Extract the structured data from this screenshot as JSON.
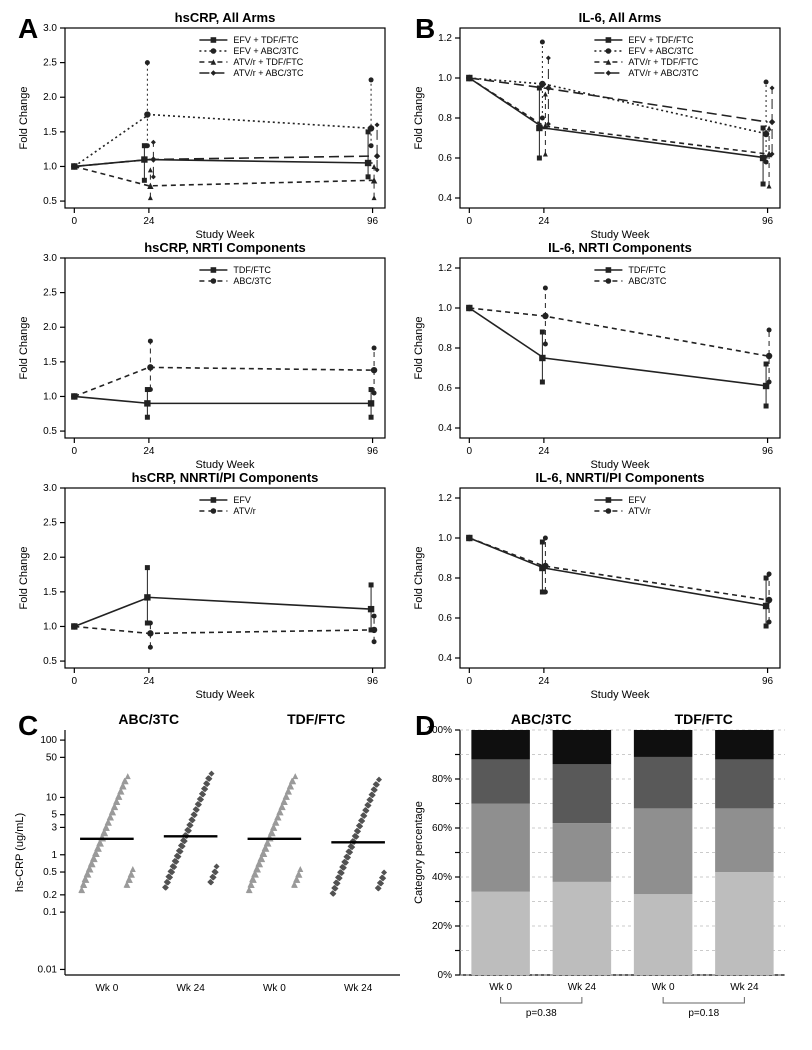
{
  "panel_letters": {
    "A": "A",
    "B": "B",
    "C": "C",
    "D": "D"
  },
  "lineplots": {
    "common": {
      "x": {
        "ticks": [
          0,
          24,
          96
        ],
        "lim": [
          -3,
          100
        ],
        "label": "Study Week"
      },
      "axis_color": "#000",
      "line_colors": {
        "solid": "#1a1a1a",
        "dashed": "#1a1a1a",
        "dotted": "#1a1a1a",
        "longdash": "#1a1a1a"
      }
    },
    "A1": {
      "title": "hsCRP, All Arms",
      "ylabel": "Fold Change",
      "ylim": [
        0.4,
        3.0
      ],
      "yticks": [
        0.5,
        1.0,
        1.5,
        2.0,
        2.5,
        3.0
      ],
      "legend": [
        "EFV + TDF/FTC",
        "EFV + ABC/3TC",
        "ATV/r + TDF/FTC",
        "ATV/r + ABC/3TC"
      ],
      "series": [
        {
          "dash": "",
          "marker": "square",
          "pts": [
            [
              0,
              1.0
            ],
            [
              24,
              1.1
            ],
            [
              96,
              1.05
            ]
          ],
          "err": [
            [
              24,
              0.8,
              1.3
            ],
            [
              96,
              0.85,
              1.5
            ]
          ]
        },
        {
          "dash": "2,2",
          "marker": "circle",
          "pts": [
            [
              0,
              1.0
            ],
            [
              24,
              1.75
            ],
            [
              96,
              1.55
            ]
          ],
          "err": [
            [
              24,
              1.3,
              2.5
            ],
            [
              96,
              1.3,
              2.25
            ]
          ]
        },
        {
          "dash": "4,3",
          "marker": "triangle",
          "pts": [
            [
              0,
              1.0
            ],
            [
              24,
              0.72
            ],
            [
              96,
              0.8
            ]
          ],
          "err": [
            [
              24,
              0.55,
              0.95
            ],
            [
              96,
              0.55,
              1.0
            ]
          ]
        },
        {
          "dash": "8,4",
          "marker": "diamond",
          "pts": [
            [
              0,
              1.0
            ],
            [
              24,
              1.1
            ],
            [
              96,
              1.15
            ]
          ],
          "err": [
            [
              24,
              0.85,
              1.35
            ],
            [
              96,
              0.95,
              1.6
            ]
          ]
        }
      ]
    },
    "A2": {
      "title": "hsCRP, NRTI Components",
      "ylabel": "Fold Change",
      "ylim": [
        0.4,
        3.0
      ],
      "yticks": [
        0.5,
        1.0,
        1.5,
        2.0,
        2.5,
        3.0
      ],
      "legend": [
        "TDF/FTC",
        "ABC/3TC"
      ],
      "series": [
        {
          "dash": "",
          "marker": "square",
          "pts": [
            [
              0,
              1.0
            ],
            [
              24,
              0.9
            ],
            [
              96,
              0.9
            ]
          ],
          "err": [
            [
              24,
              0.7,
              1.1
            ],
            [
              96,
              0.7,
              1.1
            ]
          ]
        },
        {
          "dash": "4,3",
          "marker": "circle",
          "pts": [
            [
              0,
              1.0
            ],
            [
              24,
              1.42
            ],
            [
              96,
              1.38
            ]
          ],
          "err": [
            [
              24,
              1.1,
              1.8
            ],
            [
              96,
              1.05,
              1.7
            ]
          ]
        }
      ]
    },
    "A3": {
      "title": "hsCRP, NNRTI/PI Components",
      "ylabel": "Fold Change",
      "ylim": [
        0.4,
        3.0
      ],
      "yticks": [
        0.5,
        1.0,
        1.5,
        2.0,
        2.5,
        3.0
      ],
      "legend": [
        "EFV",
        "ATV/r"
      ],
      "series": [
        {
          "dash": "",
          "marker": "square",
          "pts": [
            [
              0,
              1.0
            ],
            [
              24,
              1.42
            ],
            [
              96,
              1.25
            ]
          ],
          "err": [
            [
              24,
              1.05,
              1.85
            ],
            [
              96,
              0.95,
              1.6
            ]
          ]
        },
        {
          "dash": "4,3",
          "marker": "circle",
          "pts": [
            [
              0,
              1.0
            ],
            [
              24,
              0.9
            ],
            [
              96,
              0.95
            ]
          ],
          "err": [
            [
              24,
              0.7,
              1.05
            ],
            [
              96,
              0.78,
              1.15
            ]
          ]
        }
      ]
    },
    "B1": {
      "title": "IL-6, All Arms",
      "ylabel": "Fold Change",
      "ylim": [
        0.35,
        1.25
      ],
      "yticks": [
        0.4,
        0.6,
        0.8,
        1.0,
        1.2
      ],
      "legend": [
        "EFV + TDF/FTC",
        "EFV + ABC/3TC",
        "ATV/r + TDF/FTC",
        "ATV/r + ABC/3TC"
      ],
      "series": [
        {
          "dash": "",
          "marker": "square",
          "pts": [
            [
              0,
              1.0
            ],
            [
              24,
              0.75
            ],
            [
              96,
              0.6
            ]
          ],
          "err": [
            [
              24,
              0.6,
              0.95
            ],
            [
              96,
              0.47,
              0.75
            ]
          ]
        },
        {
          "dash": "2,2",
          "marker": "circle",
          "pts": [
            [
              0,
              1.0
            ],
            [
              24,
              0.97
            ],
            [
              96,
              0.72
            ]
          ],
          "err": [
            [
              24,
              0.8,
              1.18
            ],
            [
              96,
              0.58,
              0.98
            ]
          ]
        },
        {
          "dash": "4,3",
          "marker": "triangle",
          "pts": [
            [
              0,
              1.0
            ],
            [
              24,
              0.76
            ],
            [
              96,
              0.62
            ]
          ],
          "err": [
            [
              24,
              0.62,
              0.92
            ],
            [
              96,
              0.46,
              0.75
            ]
          ]
        },
        {
          "dash": "8,4",
          "marker": "diamond",
          "pts": [
            [
              0,
              1.0
            ],
            [
              24,
              0.95
            ],
            [
              96,
              0.78
            ]
          ],
          "err": [
            [
              24,
              0.77,
              1.1
            ],
            [
              96,
              0.62,
              0.95
            ]
          ]
        }
      ]
    },
    "B2": {
      "title": "IL-6, NRTI Components",
      "ylabel": "Fold Change",
      "ylim": [
        0.35,
        1.25
      ],
      "yticks": [
        0.4,
        0.6,
        0.8,
        1.0,
        1.2
      ],
      "legend": [
        "TDF/FTC",
        "ABC/3TC"
      ],
      "series": [
        {
          "dash": "",
          "marker": "square",
          "pts": [
            [
              0,
              1.0
            ],
            [
              24,
              0.75
            ],
            [
              96,
              0.61
            ]
          ],
          "err": [
            [
              24,
              0.63,
              0.88
            ],
            [
              96,
              0.51,
              0.72
            ]
          ]
        },
        {
          "dash": "4,3",
          "marker": "circle",
          "pts": [
            [
              0,
              1.0
            ],
            [
              24,
              0.96
            ],
            [
              96,
              0.76
            ]
          ],
          "err": [
            [
              24,
              0.82,
              1.1
            ],
            [
              96,
              0.63,
              0.89
            ]
          ]
        }
      ]
    },
    "B3": {
      "title": "IL-6, NNRTI/PI Components",
      "ylabel": "Fold Change",
      "ylim": [
        0.35,
        1.25
      ],
      "yticks": [
        0.4,
        0.6,
        0.8,
        1.0,
        1.2
      ],
      "legend": [
        "EFV",
        "ATV/r"
      ],
      "series": [
        {
          "dash": "",
          "marker": "square",
          "pts": [
            [
              0,
              1.0
            ],
            [
              24,
              0.85
            ],
            [
              96,
              0.66
            ]
          ],
          "err": [
            [
              24,
              0.73,
              0.98
            ],
            [
              96,
              0.56,
              0.8
            ]
          ]
        },
        {
          "dash": "4,3",
          "marker": "circle",
          "pts": [
            [
              0,
              1.0
            ],
            [
              24,
              0.86
            ],
            [
              96,
              0.69
            ]
          ],
          "err": [
            [
              24,
              0.73,
              1.0
            ],
            [
              96,
              0.58,
              0.82
            ]
          ]
        }
      ]
    }
  },
  "panelC": {
    "groups": [
      {
        "header": "ABC/3TC",
        "cols": [
          {
            "label": "Wk 0",
            "color": "#9a9a9a",
            "marker": "triangle",
            "median": 1.9
          },
          {
            "label": "Wk 24",
            "color": "#525252",
            "marker": "diamond",
            "median": 2.1
          }
        ]
      },
      {
        "header": "TDF/FTC",
        "cols": [
          {
            "label": "Wk 0",
            "color": "#9a9a9a",
            "marker": "triangle",
            "median": 1.9
          },
          {
            "label": "Wk 24",
            "color": "#525252",
            "marker": "diamond",
            "median": 1.65
          }
        ]
      }
    ],
    "ylabel": "hs-CRP (ug/mL)",
    "yticks": [
      0.01,
      0.1,
      0.2,
      0.5,
      1,
      3,
      5,
      10,
      50,
      100
    ],
    "ylim": [
      0.008,
      150
    ],
    "n_per_cloud": 110
  },
  "panelD": {
    "groups": [
      "ABC/3TC",
      "TDF/FTC"
    ],
    "xlabels": [
      "Wk 0",
      "Wk 24",
      "Wk 0",
      "Wk 24"
    ],
    "ylabel": "Category percentage",
    "yticks": [
      0,
      10,
      20,
      30,
      40,
      50,
      60,
      70,
      80,
      90,
      100
    ],
    "stack_colors": [
      "#bdbdbd",
      "#8f8f8f",
      "#595959",
      "#0f0f0f"
    ],
    "stacks": [
      [
        34,
        36,
        18,
        12
      ],
      [
        38,
        24,
        24,
        14
      ],
      [
        33,
        35,
        21,
        11
      ],
      [
        42,
        26,
        20,
        12
      ]
    ],
    "pvalues": [
      {
        "label": "p=0.38",
        "span": [
          0,
          1
        ]
      },
      {
        "label": "p=0.18",
        "span": [
          2,
          3
        ]
      }
    ]
  }
}
